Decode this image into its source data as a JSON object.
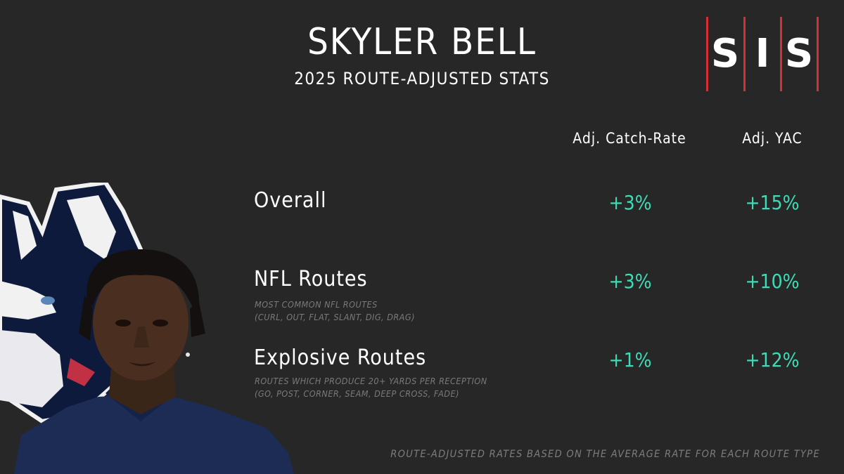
{
  "header": {
    "title": "SKYLER BELL",
    "subtitle": "2025 ROUTE-ADJUSTED STATS"
  },
  "logo": {
    "letters": [
      "S",
      "I",
      "S"
    ],
    "bar_color": "#d63036"
  },
  "columns": {
    "catch_rate": "Adj. Catch-Rate",
    "yac": "Adj. YAC"
  },
  "rows": [
    {
      "label": "Overall",
      "note_line1": "",
      "note_line2": "",
      "catch_rate": "+3%",
      "yac": "+15%"
    },
    {
      "label": "NFL Routes",
      "note_line1": "MOST COMMON NFL ROUTES",
      "note_line2": "(CURL, OUT, FLAT, SLANT, DIG, DRAG)",
      "catch_rate": "+3%",
      "yac": "+10%"
    },
    {
      "label": "Explosive Routes",
      "note_line1": "ROUTES WHICH PRODUCE 20+ YARDS PER RECEPTION",
      "note_line2": "(GO, POST, CORNER, SEAM, DEEP CROSS, FADE)",
      "catch_rate": "+1%",
      "yac": "+12%"
    }
  ],
  "footnote": "ROUTE-ADJUSTED RATES BASED ON THE AVERAGE RATE FOR EACH ROUTE TYPE",
  "colors": {
    "background": "#272727",
    "value_green": "#3ddbb6",
    "note_gray": "#7a7a7a",
    "husky_navy": "#0e1a3c",
    "shirt_navy": "#1c2c55"
  }
}
